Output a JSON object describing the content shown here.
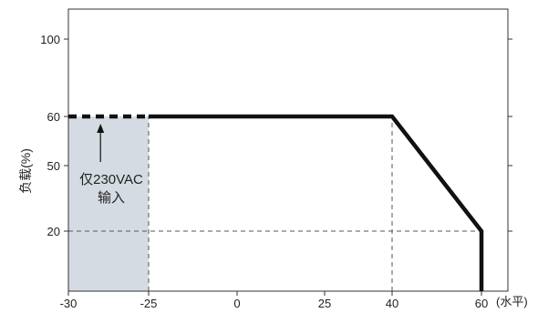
{
  "chart_data": {
    "type": "line",
    "ylabel": "负载(%)",
    "xunit_label": "(水平)",
    "x_ticks": [
      -30,
      -25,
      0,
      25,
      40,
      60
    ],
    "y_ticks": [
      20,
      50,
      60,
      100
    ],
    "series": [
      {
        "x": [
          -25,
          40,
          60,
          60
        ],
        "y": [
          60,
          60,
          20,
          0
        ],
        "style": "solid"
      },
      {
        "x": [
          -30,
          -25
        ],
        "y": [
          60,
          60
        ],
        "style": "dashed"
      }
    ],
    "shaded_region": {
      "x": [
        -30,
        -25
      ],
      "y": [
        0,
        60
      ],
      "color": "#d5dbe2"
    },
    "reference_lines": [
      {
        "type": "vertical",
        "x": -25,
        "y": [
          0,
          60
        ]
      },
      {
        "type": "vertical",
        "x": 40,
        "y": [
          0,
          60
        ]
      },
      {
        "type": "horizontal",
        "y": 20,
        "x": [
          -30,
          60
        ]
      }
    ],
    "annotation": {
      "lines": [
        "仅230VAC",
        "输入"
      ],
      "arrow_target": {
        "x": -28,
        "y": 60
      }
    },
    "colors": {
      "line": "#111111",
      "shade": "#d5dbe2",
      "grid": "#555555"
    }
  }
}
